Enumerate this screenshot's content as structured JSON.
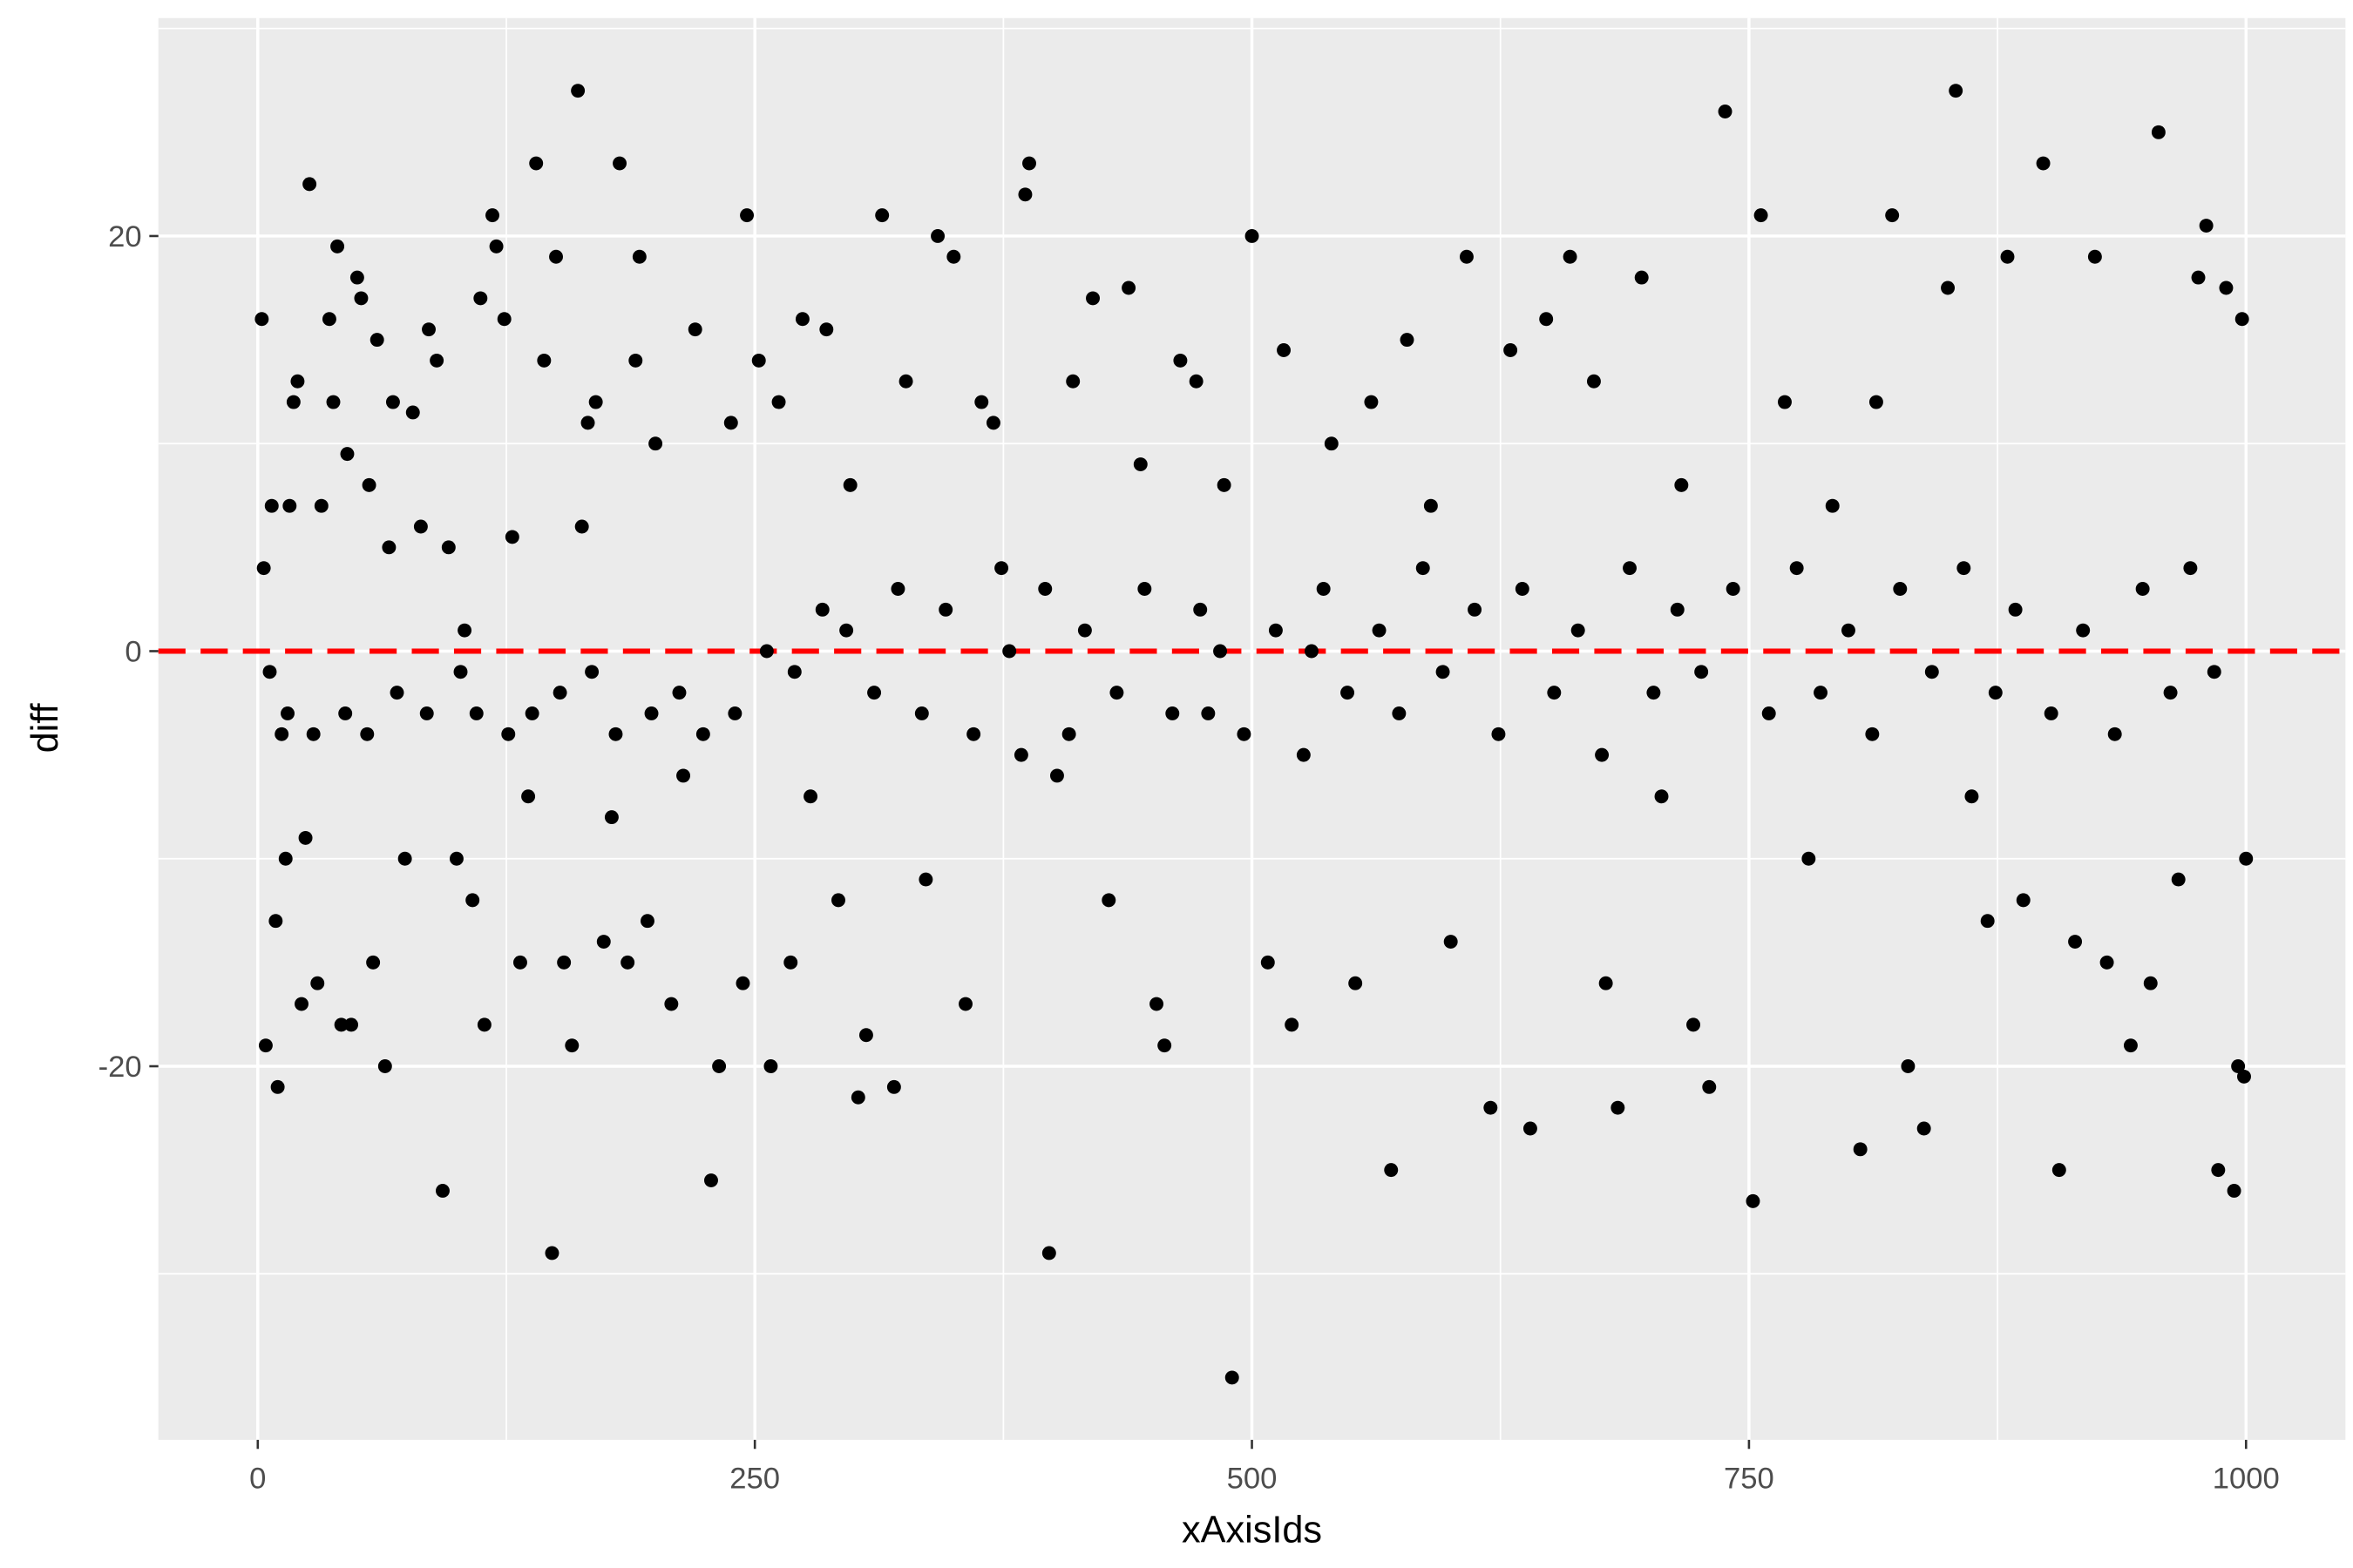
{
  "chart_data": {
    "type": "scatter",
    "title": "",
    "xlabel": "xAxisIds",
    "ylabel": "diff",
    "xlim": [
      -50,
      1050
    ],
    "ylim": [
      -38,
      30.5
    ],
    "xticks": [
      0,
      250,
      500,
      750,
      1000
    ],
    "xtick_labels": [
      "0",
      "250",
      "500",
      "750",
      "1000"
    ],
    "yticks": [
      -20,
      0,
      20
    ],
    "ytick_labels": [
      "-20",
      "0",
      "20"
    ],
    "grid": true,
    "point_color": "#000000",
    "panel_background": "#EBEBEB",
    "reference_line": {
      "y": 0,
      "style": "dashed",
      "color": "#FF0000"
    },
    "points": [
      [
        2,
        16
      ],
      [
        3,
        4
      ],
      [
        4,
        -19
      ],
      [
        6,
        -1
      ],
      [
        7,
        7
      ],
      [
        9,
        -13
      ],
      [
        10,
        -21
      ],
      [
        12,
        -4
      ],
      [
        14,
        -10
      ],
      [
        16,
        7
      ],
      [
        18,
        12
      ],
      [
        20,
        13
      ],
      [
        22,
        -17
      ],
      [
        24,
        -9
      ],
      [
        26,
        22.5
      ],
      [
        30,
        -16
      ],
      [
        32,
        7
      ],
      [
        36,
        16
      ],
      [
        38,
        12
      ],
      [
        40,
        19.5
      ],
      [
        42,
        -18
      ],
      [
        45,
        9.5
      ],
      [
        47,
        -18
      ],
      [
        50,
        18
      ],
      [
        52,
        17
      ],
      [
        56,
        8
      ],
      [
        58,
        -15
      ],
      [
        60,
        15
      ],
      [
        64,
        -20
      ],
      [
        66,
        5
      ],
      [
        68,
        12
      ],
      [
        74,
        -10
      ],
      [
        78,
        11.5
      ],
      [
        82,
        6
      ],
      [
        86,
        15.5
      ],
      [
        90,
        14
      ],
      [
        93,
        -26
      ],
      [
        96,
        5
      ],
      [
        100,
        -10
      ],
      [
        104,
        1
      ],
      [
        108,
        -12
      ],
      [
        112,
        17
      ],
      [
        114,
        -18
      ],
      [
        118,
        21
      ],
      [
        120,
        19.5
      ],
      [
        124,
        16
      ],
      [
        128,
        5.5
      ],
      [
        132,
        -15
      ],
      [
        136,
        -7
      ],
      [
        140,
        23.5
      ],
      [
        144,
        14
      ],
      [
        148,
        -29
      ],
      [
        150,
        19
      ],
      [
        154,
        -15
      ],
      [
        158,
        -19
      ],
      [
        161,
        27
      ],
      [
        163,
        6
      ],
      [
        166,
        11
      ],
      [
        170,
        12
      ],
      [
        174,
        -14
      ],
      [
        178,
        -8
      ],
      [
        182,
        23.5
      ],
      [
        186,
        -15
      ],
      [
        190,
        14
      ],
      [
        192,
        19
      ],
      [
        196,
        -13
      ],
      [
        200,
        10
      ],
      [
        208,
        -17
      ],
      [
        214,
        -6
      ],
      [
        220,
        15.5
      ],
      [
        228,
        -25.5
      ],
      [
        232,
        -20
      ],
      [
        238,
        11
      ],
      [
        244,
        -16
      ],
      [
        246,
        21
      ],
      [
        252,
        14
      ],
      [
        258,
        -20
      ],
      [
        262,
        12
      ],
      [
        268,
        -15
      ],
      [
        274,
        16
      ],
      [
        278,
        -7
      ],
      [
        286,
        15.5
      ],
      [
        292,
        -12
      ],
      [
        298,
        8
      ],
      [
        302,
        -21.5
      ],
      [
        306,
        -18.5
      ],
      [
        314,
        21
      ],
      [
        320,
        -21
      ],
      [
        326,
        13
      ],
      [
        336,
        -11
      ],
      [
        342,
        20
      ],
      [
        350,
        19
      ],
      [
        356,
        -17
      ],
      [
        364,
        12
      ],
      [
        370,
        11
      ],
      [
        378,
        0
      ],
      [
        386,
        22
      ],
      [
        388,
        23.5
      ],
      [
        398,
        -29
      ],
      [
        402,
        -6
      ],
      [
        410,
        13
      ],
      [
        420,
        17
      ],
      [
        428,
        -12
      ],
      [
        438,
        17.5
      ],
      [
        444,
        9
      ],
      [
        452,
        -17
      ],
      [
        456,
        -19
      ],
      [
        464,
        14
      ],
      [
        472,
        13
      ],
      [
        478,
        -3
      ],
      [
        486,
        8
      ],
      [
        490,
        -35
      ],
      [
        500,
        20
      ],
      [
        508,
        -15
      ],
      [
        516,
        14.5
      ],
      [
        520,
        -18
      ],
      [
        530,
        0
      ],
      [
        540,
        10
      ],
      [
        552,
        -16
      ],
      [
        560,
        12
      ],
      [
        570,
        -25
      ],
      [
        578,
        15
      ],
      [
        590,
        7
      ],
      [
        600,
        -14
      ],
      [
        608,
        19
      ],
      [
        620,
        -22
      ],
      [
        630,
        14.5
      ],
      [
        640,
        -23
      ],
      [
        648,
        16
      ],
      [
        660,
        19
      ],
      [
        672,
        13
      ],
      [
        678,
        -16
      ],
      [
        684,
        -22
      ],
      [
        696,
        18
      ],
      [
        706,
        -7
      ],
      [
        716,
        8
      ],
      [
        722,
        -18
      ],
      [
        730,
        -21
      ],
      [
        738,
        26
      ],
      [
        752,
        -26.5
      ],
      [
        756,
        21
      ],
      [
        768,
        12
      ],
      [
        780,
        -10
      ],
      [
        792,
        7
      ],
      [
        806,
        -24
      ],
      [
        814,
        12
      ],
      [
        822,
        21
      ],
      [
        830,
        -20
      ],
      [
        838,
        -23
      ],
      [
        850,
        17.5
      ],
      [
        854,
        27
      ],
      [
        862,
        -7
      ],
      [
        870,
        -13
      ],
      [
        880,
        19
      ],
      [
        888,
        -12
      ],
      [
        898,
        23.5
      ],
      [
        906,
        -25
      ],
      [
        914,
        -14
      ],
      [
        924,
        19
      ],
      [
        930,
        -15
      ],
      [
        942,
        -19
      ],
      [
        952,
        -16
      ],
      [
        956,
        25
      ],
      [
        966,
        -11
      ],
      [
        976,
        18
      ],
      [
        980,
        20.5
      ],
      [
        986,
        -25
      ],
      [
        990,
        17.5
      ],
      [
        994,
        -26
      ],
      [
        996,
        -20
      ],
      [
        998,
        16
      ],
      [
        999,
        -20.5
      ],
      [
        1000,
        -10
      ],
      [
        15,
        -3
      ],
      [
        28,
        -4
      ],
      [
        44,
        -3
      ],
      [
        55,
        -4
      ],
      [
        70,
        -2
      ],
      [
        85,
        -3
      ],
      [
        102,
        -1
      ],
      [
        110,
        -3
      ],
      [
        126,
        -4
      ],
      [
        138,
        -3
      ],
      [
        152,
        -2
      ],
      [
        168,
        -1
      ],
      [
        180,
        -4
      ],
      [
        198,
        -3
      ],
      [
        212,
        -2
      ],
      [
        224,
        -4
      ],
      [
        240,
        -3
      ],
      [
        256,
        0
      ],
      [
        270,
        -1
      ],
      [
        284,
        2
      ],
      [
        296,
        1
      ],
      [
        310,
        -2
      ],
      [
        322,
        3
      ],
      [
        334,
        -3
      ],
      [
        346,
        2
      ],
      [
        360,
        -4
      ],
      [
        374,
        4
      ],
      [
        384,
        -5
      ],
      [
        396,
        3
      ],
      [
        408,
        -4
      ],
      [
        416,
        1
      ],
      [
        432,
        -2
      ],
      [
        446,
        3
      ],
      [
        460,
        -3
      ],
      [
        474,
        2
      ],
      [
        484,
        0
      ],
      [
        496,
        -4
      ],
      [
        512,
        1
      ],
      [
        526,
        -5
      ],
      [
        536,
        3
      ],
      [
        548,
        -2
      ],
      [
        564,
        1
      ],
      [
        574,
        -3
      ],
      [
        586,
        4
      ],
      [
        596,
        -1
      ],
      [
        612,
        2
      ],
      [
        624,
        -4
      ],
      [
        636,
        3
      ],
      [
        652,
        -2
      ],
      [
        664,
        1
      ],
      [
        676,
        -5
      ],
      [
        690,
        4
      ],
      [
        702,
        -2
      ],
      [
        714,
        2
      ],
      [
        726,
        -1
      ],
      [
        742,
        3
      ],
      [
        760,
        -3
      ],
      [
        774,
        4
      ],
      [
        786,
        -2
      ],
      [
        800,
        1
      ],
      [
        812,
        -4
      ],
      [
        826,
        3
      ],
      [
        842,
        -1
      ],
      [
        858,
        4
      ],
      [
        874,
        -2
      ],
      [
        884,
        2
      ],
      [
        902,
        -3
      ],
      [
        918,
        1
      ],
      [
        934,
        -4
      ],
      [
        948,
        3
      ],
      [
        962,
        -2
      ],
      [
        972,
        4
      ],
      [
        984,
        -1
      ]
    ]
  }
}
